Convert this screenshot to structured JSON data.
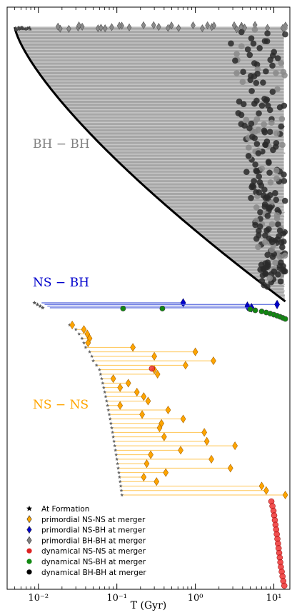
{
  "chart_data": {
    "type": "scatter",
    "xlabel": "T (Gyr)",
    "xscale": "log",
    "xlim": [
      0.004,
      16
    ],
    "x_ticks": [
      {
        "value": 0.01,
        "label": "10⁻²"
      },
      {
        "value": 0.1,
        "label": "10⁻¹"
      },
      {
        "value": 1,
        "label": "10⁰"
      },
      {
        "value": 10,
        "label": "10¹"
      }
    ],
    "y_axis_labeled": false,
    "grid": false,
    "legend_location": "lower-left",
    "groups": [
      {
        "label": "BH − BH",
        "color": "#808080"
      },
      {
        "label": "NS − BH",
        "color": "#0000cc"
      },
      {
        "label": "NS − NS",
        "color": "#ffa500"
      }
    ],
    "legend": [
      {
        "label": "At Formation",
        "marker": "star",
        "color": "#000000"
      },
      {
        "label": "primordial NS-NS at merger",
        "marker": "diamond",
        "color": "#ffa500"
      },
      {
        "label": "primordial NS-BH at merger",
        "marker": "diamond",
        "color": "#0000cc"
      },
      {
        "label": "primordial BH-BH at merger",
        "marker": "diamond",
        "color": "#808080"
      },
      {
        "label": "dynamical NS-NS at merger",
        "marker": "circle",
        "color": "#dd2222"
      },
      {
        "label": "dynamical NS-BH at merger",
        "marker": "circle",
        "color": "#118811"
      },
      {
        "label": "dynamical BH-BH at merger",
        "marker": "circle",
        "color": "#000000"
      }
    ],
    "nsbh_primordial": [
      {
        "formation": 0.011,
        "merger": 0.7
      },
      {
        "formation": 0.012,
        "merger": 11.0
      },
      {
        "formation": 0.013,
        "merger": 4.6
      },
      {
        "formation": 0.014,
        "merger": 5.2
      }
    ],
    "nsbh_dynamical": [
      0.12,
      0.38,
      5.0,
      5.8,
      7.0,
      8.0,
      9.0,
      10.0,
      11.0,
      12.0,
      13.0,
      14.0
    ],
    "nsns_primordial": [
      {
        "formation": 0.025,
        "merger": 0.027
      },
      {
        "formation": 0.03,
        "merger": 0.038
      },
      {
        "formation": 0.033,
        "merger": 0.042
      },
      {
        "formation": 0.036,
        "merger": 0.045
      },
      {
        "formation": 0.038,
        "merger": 0.043
      },
      {
        "formation": 0.04,
        "merger": 0.16
      },
      {
        "formation": 0.045,
        "merger": 1.0
      },
      {
        "formation": 0.048,
        "merger": 0.3
      },
      {
        "formation": 0.05,
        "merger": 1.7
      },
      {
        "formation": 0.055,
        "merger": 0.75
      },
      {
        "formation": 0.06,
        "merger": 0.3
      },
      {
        "formation": 0.062,
        "merger": 0.33
      },
      {
        "formation": 0.064,
        "merger": 0.09
      },
      {
        "formation": 0.066,
        "merger": 0.14
      },
      {
        "formation": 0.068,
        "merger": 0.11
      },
      {
        "formation": 0.07,
        "merger": 0.18
      },
      {
        "formation": 0.072,
        "merger": 0.22
      },
      {
        "formation": 0.074,
        "merger": 0.25
      },
      {
        "formation": 0.076,
        "merger": 0.11
      },
      {
        "formation": 0.078,
        "merger": 0.45
      },
      {
        "formation": 0.08,
        "merger": 0.21
      },
      {
        "formation": 0.082,
        "merger": 0.7
      },
      {
        "formation": 0.084,
        "merger": 0.37
      },
      {
        "formation": 0.086,
        "merger": 0.35
      },
      {
        "formation": 0.088,
        "merger": 1.3
      },
      {
        "formation": 0.09,
        "merger": 0.4
      },
      {
        "formation": 0.092,
        "merger": 1.4
      },
      {
        "formation": 0.094,
        "merger": 3.2
      },
      {
        "formation": 0.096,
        "merger": 0.65
      },
      {
        "formation": 0.098,
        "merger": 0.27
      },
      {
        "formation": 0.1,
        "merger": 1.6
      },
      {
        "formation": 0.102,
        "merger": 0.24
      },
      {
        "formation": 0.104,
        "merger": 2.8
      },
      {
        "formation": 0.106,
        "merger": 0.42
      },
      {
        "formation": 0.108,
        "merger": 0.22
      },
      {
        "formation": 0.11,
        "merger": 0.32
      },
      {
        "formation": 0.112,
        "merger": 7.0
      },
      {
        "formation": 0.114,
        "merger": 8.0
      },
      {
        "formation": 0.116,
        "merger": 14.0
      }
    ],
    "nsns_dynamical": [
      0.28,
      9.3,
      9.6,
      9.9,
      10.1,
      10.3,
      10.5,
      10.7,
      10.9,
      11.1,
      11.3,
      11.5,
      11.7,
      11.9,
      12.1,
      12.3,
      12.6,
      12.9,
      13.2,
      13.6
    ],
    "bhbh_formation_t_min": 0.005,
    "bhbh_merger_t_range": [
      0.005,
      14.0
    ]
  }
}
